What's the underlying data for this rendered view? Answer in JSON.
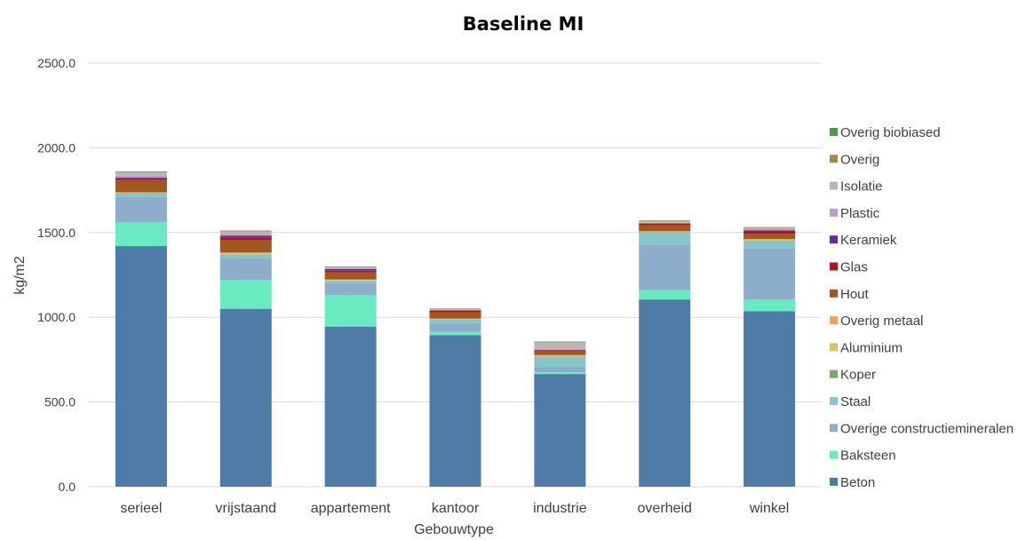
{
  "chart_data": {
    "type": "bar",
    "stacked": true,
    "title": "Baseline MI",
    "xlabel": "Gebouwtype",
    "ylabel": "kg/m2",
    "ylim": [
      0,
      2500
    ],
    "yticks": [
      "0.0",
      "500.0",
      "1000.0",
      "1500.0",
      "2000.0",
      "2500.0"
    ],
    "grid": true,
    "legend_position": "right",
    "categories": [
      "serieel",
      "vrijstaand",
      "appartement",
      "kantoor",
      "industrie",
      "overheid",
      "winkel"
    ],
    "series": [
      {
        "name": "Beton",
        "color": "#4e7ca7",
        "values": [
          1420,
          1050,
          945,
          895,
          665,
          1105,
          1035
        ]
      },
      {
        "name": "Baksteen",
        "color": "#69eac1",
        "values": [
          140,
          170,
          185,
          20,
          10,
          55,
          70
        ]
      },
      {
        "name": "Overige constructiemineralen",
        "color": "#8daecb",
        "values": [
          150,
          130,
          70,
          50,
          30,
          270,
          300
        ]
      },
      {
        "name": "Staal",
        "color": "#86c6c8",
        "values": [
          20,
          20,
          15,
          20,
          60,
          70,
          45
        ]
      },
      {
        "name": "Koper",
        "color": "#7aa96a",
        "values": [
          2,
          2,
          2,
          2,
          2,
          2,
          2
        ]
      },
      {
        "name": "Aluminium",
        "color": "#d9c26a",
        "values": [
          3,
          5,
          3,
          3,
          5,
          3,
          5
        ]
      },
      {
        "name": "Overig metaal",
        "color": "#f0a060",
        "values": [
          3,
          5,
          3,
          3,
          5,
          3,
          5
        ]
      },
      {
        "name": "Hout",
        "color": "#a1581c",
        "values": [
          72,
          75,
          42,
          35,
          25,
          35,
          30
        ]
      },
      {
        "name": "Glas",
        "color": "#b01418",
        "values": [
          10,
          15,
          10,
          10,
          3,
          10,
          15
        ]
      },
      {
        "name": "Keramiek",
        "color": "#6a2aa0",
        "values": [
          5,
          10,
          10,
          3,
          2,
          2,
          5
        ]
      },
      {
        "name": "Plastic",
        "color": "#b49fd0",
        "values": [
          10,
          10,
          5,
          3,
          5,
          3,
          10
        ]
      },
      {
        "name": "Isolatie",
        "color": "#bdb5b5",
        "values": [
          20,
          15,
          5,
          3,
          40,
          10,
          5
        ]
      },
      {
        "name": "Overig",
        "color": "#a08a50",
        "values": [
          3,
          3,
          3,
          3,
          3,
          2,
          3
        ]
      },
      {
        "name": "Overig biobiased",
        "color": "#4d9a4d",
        "values": [
          2,
          2,
          2,
          2,
          2,
          2,
          2
        ]
      }
    ]
  }
}
